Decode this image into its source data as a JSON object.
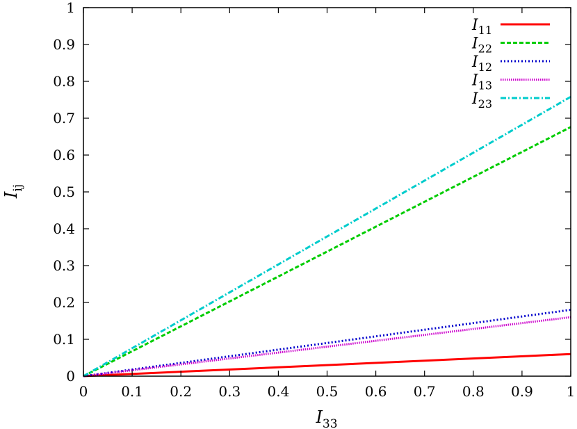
{
  "chart_data": {
    "type": "line",
    "xlabel": {
      "base": "I",
      "sub": "33"
    },
    "ylabel": {
      "base": "I",
      "sub": "ij"
    },
    "xlim": [
      0,
      1
    ],
    "ylim": [
      0,
      1
    ],
    "x_ticks": [
      "0",
      "0.1",
      "0.2",
      "0.3",
      "0.4",
      "0.5",
      "0.6",
      "0.7",
      "0.8",
      "0.9",
      "1"
    ],
    "y_ticks": [
      "0",
      "0.1",
      "0.2",
      "0.3",
      "0.4",
      "0.5",
      "0.6",
      "0.7",
      "0.8",
      "0.9",
      "1"
    ],
    "grid": false,
    "legend_position": "top-right",
    "x": [
      0,
      1
    ],
    "series": [
      {
        "name": "I11",
        "label_base": "I",
        "label_sub": "11",
        "values": [
          0,
          0.06
        ],
        "color": "#ff0000",
        "dash": "solid"
      },
      {
        "name": "I22",
        "label_base": "I",
        "label_sub": "22",
        "values": [
          0,
          0.676
        ],
        "color": "#00cc00",
        "dash": "dashed"
      },
      {
        "name": "I12",
        "label_base": "I",
        "label_sub": "12",
        "values": [
          0,
          0.18
        ],
        "color": "#0000cc",
        "dash": "dotted"
      },
      {
        "name": "I13",
        "label_base": "I",
        "label_sub": "13",
        "values": [
          0,
          0.16
        ],
        "color": "#cc00cc",
        "dash": "dense-dotted"
      },
      {
        "name": "I23",
        "label_base": "I",
        "label_sub": "23",
        "values": [
          0,
          0.758
        ],
        "color": "#00cccc",
        "dash": "dash-dot"
      }
    ]
  }
}
